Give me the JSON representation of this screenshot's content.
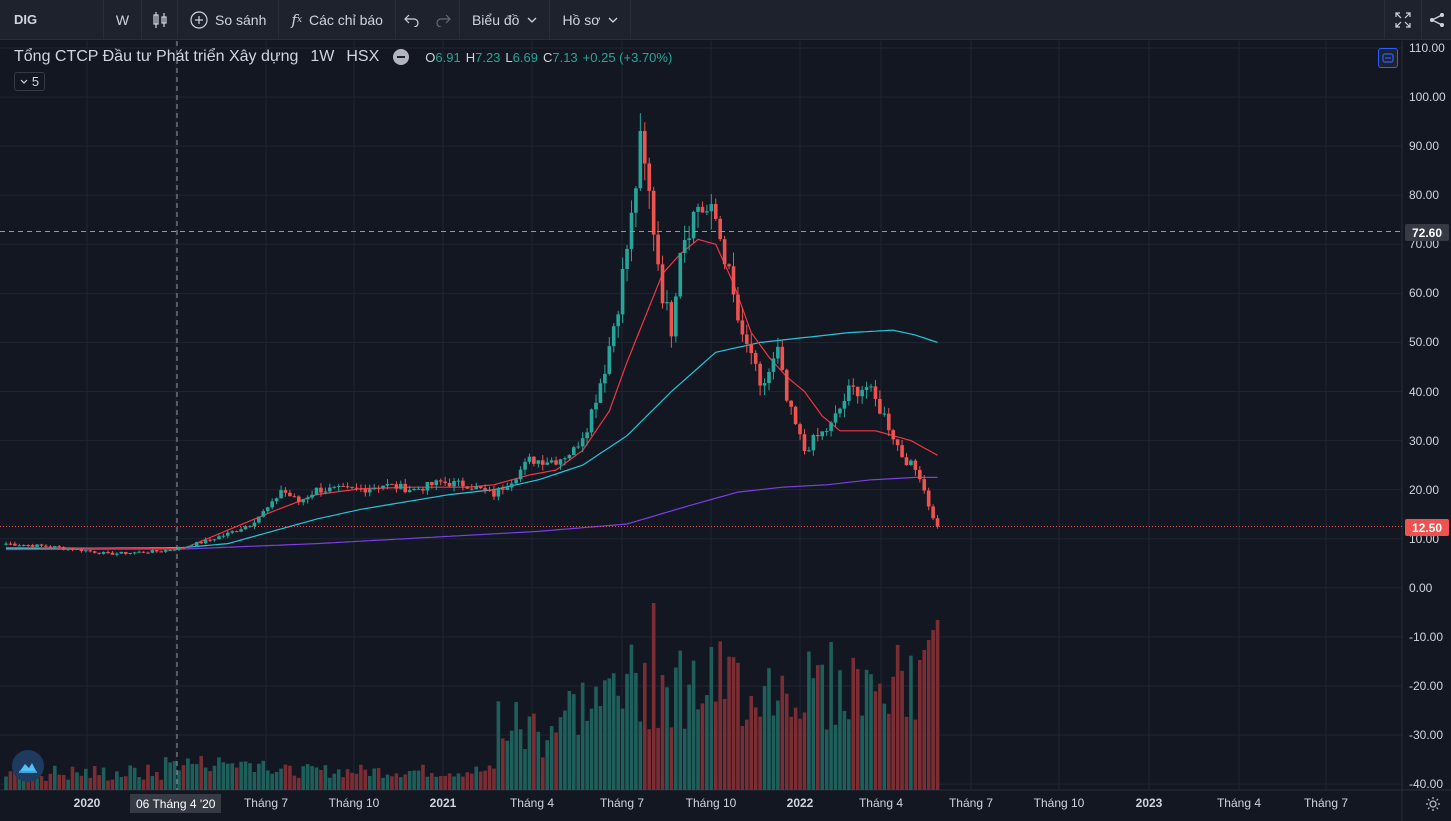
{
  "toolbar": {
    "symbol": "DIG",
    "interval": "W",
    "compare_label": "So sánh",
    "indicators_label": "Các chỉ báo",
    "chart_label": "Biểu đồ",
    "profile_label": "Hồ sơ",
    "icons": [
      "candles-icon",
      "plus-circle-icon",
      "fx-icon",
      "undo-icon",
      "redo-icon",
      "fullscreen-icon",
      "share-icon"
    ]
  },
  "legend": {
    "name": "Tổng CTCP Đầu tư Phát triển Xây dựng",
    "interval": "1W",
    "exchange": "HSX",
    "o_label": "O",
    "o": "6.91",
    "h_label": "H",
    "h": "7.23",
    "l_label": "L",
    "l": "6.69",
    "c_label": "C",
    "c": "7.13",
    "change": "+0.25 (+3.70%)",
    "collapse_count": "5"
  },
  "price_tags": {
    "crosshair": "72.60",
    "last": "12.50"
  },
  "crosshair_date": "06 Tháng 4 '20",
  "colors": {
    "up": "#26a69a",
    "down": "#ef5350",
    "ma_fast": "#f23645",
    "ma_mid": "#26c6da",
    "ma_slow": "#7b3fe4",
    "background": "#131722"
  },
  "chart_data": {
    "type": "candlestick",
    "symbol": "DIG",
    "interval": "1W",
    "yaxis_ticks": [
      "110.00",
      "100.00",
      "90.00",
      "80.00",
      "70.00",
      "60.00",
      "50.00",
      "40.00",
      "30.00",
      "20.00",
      "10.00",
      "0.00",
      "-10.00",
      "-20.00",
      "-30.00",
      "-40.00"
    ],
    "xaxis_ticks": [
      "2020",
      "06 Tháng 4 '20",
      "Tháng 7",
      "Tháng 10",
      "2021",
      "Tháng 4",
      "Tháng 7",
      "Tháng 10",
      "2022",
      "Tháng 4",
      "Tháng 7",
      "Tháng 10",
      "2023",
      "Tháng 4",
      "Tháng 7"
    ],
    "ylim": [
      -40,
      110
    ],
    "price_anchors": [
      [
        0,
        9.0
      ],
      [
        10,
        8.4
      ],
      [
        18,
        7.6
      ],
      [
        23,
        6.9
      ],
      [
        35,
        7.5
      ],
      [
        40,
        8.3
      ],
      [
        45,
        9.5
      ],
      [
        50,
        11
      ],
      [
        55,
        13
      ],
      [
        60,
        17
      ],
      [
        62,
        20
      ],
      [
        66,
        17.5
      ],
      [
        70,
        20
      ],
      [
        80,
        20
      ],
      [
        85,
        21
      ],
      [
        92,
        20
      ],
      [
        98,
        21.5
      ],
      [
        104,
        21
      ],
      [
        110,
        19
      ],
      [
        114,
        22
      ],
      [
        118,
        26
      ],
      [
        124,
        26
      ],
      [
        128,
        28
      ],
      [
        131,
        33
      ],
      [
        135,
        45
      ],
      [
        138,
        58
      ],
      [
        141,
        75
      ],
      [
        143,
        90
      ],
      [
        145,
        80
      ],
      [
        148,
        60
      ],
      [
        150,
        53
      ],
      [
        152,
        70
      ],
      [
        156,
        78
      ],
      [
        160,
        75
      ],
      [
        162,
        68
      ],
      [
        166,
        50
      ],
      [
        168,
        48
      ],
      [
        170,
        40
      ],
      [
        174,
        48
      ],
      [
        176,
        38
      ],
      [
        180,
        28
      ],
      [
        182,
        30
      ],
      [
        186,
        33
      ],
      [
        190,
        40
      ],
      [
        194,
        41
      ],
      [
        198,
        35
      ],
      [
        202,
        27
      ],
      [
        206,
        23
      ],
      [
        209,
        14
      ],
      [
        210,
        12.5
      ]
    ],
    "ma_fast": [
      [
        60,
        15.5
      ],
      [
        70,
        19
      ],
      [
        80,
        20.2
      ],
      [
        92,
        20.5
      ],
      [
        104,
        20.5
      ],
      [
        110,
        21
      ],
      [
        118,
        23
      ],
      [
        124,
        24
      ],
      [
        130,
        28
      ],
      [
        136,
        36
      ],
      [
        140,
        46
      ],
      [
        144,
        55
      ],
      [
        148,
        64
      ],
      [
        152,
        68
      ],
      [
        156,
        71
      ],
      [
        160,
        70
      ],
      [
        164,
        62
      ],
      [
        168,
        52
      ],
      [
        172,
        47
      ],
      [
        176,
        43
      ],
      [
        180,
        40
      ],
      [
        184,
        35
      ],
      [
        188,
        32
      ],
      [
        192,
        32
      ],
      [
        196,
        32
      ],
      [
        200,
        31
      ],
      [
        204,
        30
      ],
      [
        208,
        28
      ],
      [
        210,
        27
      ]
    ],
    "ma_mid": [
      [
        40,
        8.2
      ],
      [
        50,
        9
      ],
      [
        60,
        11.5
      ],
      [
        70,
        14
      ],
      [
        80,
        16
      ],
      [
        90,
        17.5
      ],
      [
        100,
        19
      ],
      [
        110,
        20
      ],
      [
        120,
        22
      ],
      [
        130,
        25
      ],
      [
        140,
        31
      ],
      [
        150,
        40
      ],
      [
        160,
        48
      ],
      [
        170,
        50
      ],
      [
        180,
        51
      ],
      [
        190,
        52
      ],
      [
        200,
        52.5
      ],
      [
        205,
        51.5
      ],
      [
        210,
        50
      ]
    ],
    "ma_slow": [
      [
        40,
        7.9
      ],
      [
        70,
        9
      ],
      [
        100,
        10.5
      ],
      [
        120,
        11.5
      ],
      [
        140,
        13
      ],
      [
        155,
        17
      ],
      [
        165,
        19.5
      ],
      [
        175,
        20.5
      ],
      [
        185,
        21
      ],
      [
        195,
        22
      ],
      [
        205,
        22.5
      ],
      [
        210,
        22.5
      ]
    ],
    "volume_scale_note": "volume histogram shares bottom pane, no axis"
  }
}
